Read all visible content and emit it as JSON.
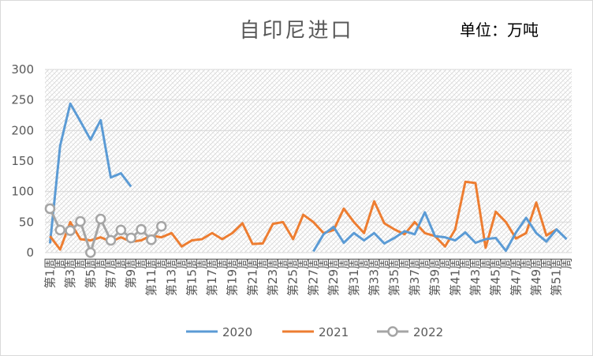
{
  "chart_data": {
    "type": "line",
    "title": "自印尼进口",
    "unit_label": "单位：万吨",
    "ylim": [
      0,
      300
    ],
    "yticks": [
      0,
      50,
      100,
      150,
      200,
      250,
      300
    ],
    "x_tick_labels": [
      "第1周",
      "第3周",
      "第5周",
      "第7周",
      "第9周",
      "第11周",
      "第13周",
      "第15周",
      "第17周",
      "第19周",
      "第21周",
      "第23周",
      "第25周",
      "第27周",
      "第29周",
      "第31周",
      "第33周",
      "第35周",
      "第37周",
      "第39周",
      "第41周",
      "第43周",
      "第45周",
      "第47周",
      "第49周",
      "第51周"
    ],
    "x_label_suffix": "周",
    "grid": true,
    "legend": "bottom",
    "series": [
      {
        "name": "2020",
        "color": "#5b9bd5",
        "marker": false,
        "start_week": 1,
        "values": [
          15,
          175,
          244,
          215,
          185,
          217,
          123,
          130,
          108
        ]
      },
      {
        "name": "2021",
        "color": "#ed7d31",
        "marker": false,
        "start_week": 1,
        "values": [
          27,
          5,
          50,
          22,
          20,
          25,
          18,
          25,
          18,
          20,
          28,
          25,
          32,
          10,
          20,
          22,
          32,
          22,
          32,
          48,
          14,
          15,
          47,
          50,
          22,
          62,
          50,
          32,
          37,
          72,
          50,
          32,
          84,
          48,
          38,
          30,
          50,
          32,
          27,
          10,
          38,
          116,
          114,
          8,
          67,
          50,
          23,
          32,
          82,
          28,
          38
        ]
      },
      {
        "name": "2022",
        "color": "#a5a5a5",
        "marker": true,
        "start_week": 1,
        "values": [
          72,
          37,
          36,
          51,
          0,
          55,
          20,
          37,
          24,
          38,
          21,
          43
        ]
      },
      {
        "name": "2020",
        "color": "#5b9bd5",
        "marker": false,
        "start_week": 27,
        "continuation": true,
        "values": [
          2,
          30,
          42,
          16,
          32,
          20,
          32,
          15,
          24,
          35,
          30,
          66,
          27,
          25,
          20,
          33,
          16,
          22,
          24,
          3,
          33,
          57,
          32,
          18,
          38,
          22
        ]
      }
    ],
    "legend_entries": [
      "2020",
      "2021",
      "2022"
    ]
  }
}
